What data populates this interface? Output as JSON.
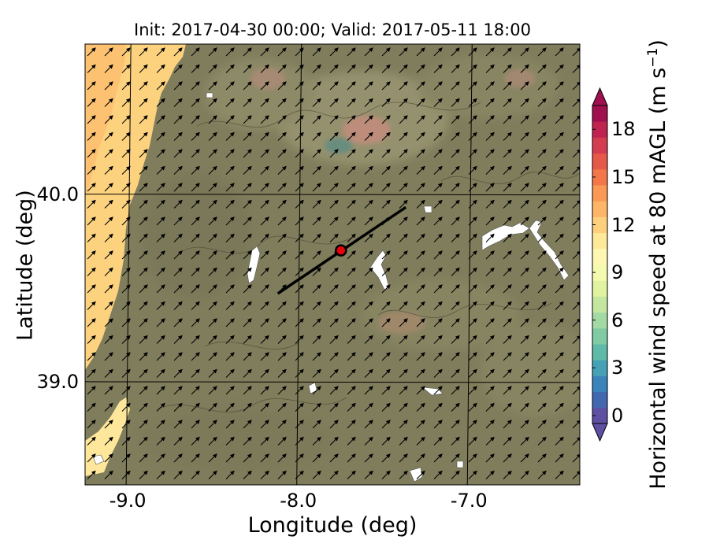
{
  "title": "Init: 2017-04-30 00:00; Valid: 2017-05-11 18:00",
  "map": {
    "xlabel": "Longitude (deg)",
    "ylabel": "Latitude (deg)",
    "lon_range": [
      -9.25,
      -6.35
    ],
    "lat_range": [
      38.45,
      40.8
    ],
    "x_ticks": [
      {
        "value": -9.0,
        "label": "-9.0"
      },
      {
        "value": -8.0,
        "label": "-8.0"
      },
      {
        "value": -7.0,
        "label": "-7.0"
      }
    ],
    "y_ticks": [
      {
        "value": 40.0,
        "label": "40.0"
      },
      {
        "value": 39.0,
        "label": "39.0"
      }
    ],
    "transect": {
      "from": [
        -8.12,
        39.47
      ],
      "to": [
        -7.37,
        39.93
      ]
    },
    "site_marker": {
      "lon": -7.75,
      "lat": 39.7,
      "color": "#e8000b"
    }
  },
  "colorbar": {
    "label_main": "Horizontal wind speed at 80 mAGL (m s",
    "label_exp": "−1",
    "label_close": ")",
    "min": 0,
    "max": 20,
    "step": 1,
    "extend": "both",
    "ticks": [
      "0",
      "3",
      "6",
      "9",
      "12",
      "15",
      "18"
    ],
    "colors": [
      "#5e4fa2",
      "#4367af",
      "#3a84bb",
      "#45a2b6",
      "#5fbaa8",
      "#80cba4",
      "#a3daa3",
      "#c4e7a0",
      "#e1f3a0",
      "#f4faae",
      "#fef7b3",
      "#fee99a",
      "#fed07e",
      "#fdb567",
      "#fa9856",
      "#f4774a",
      "#e65848",
      "#d43d4f",
      "#bf2451",
      "#a0104e"
    ]
  }
}
